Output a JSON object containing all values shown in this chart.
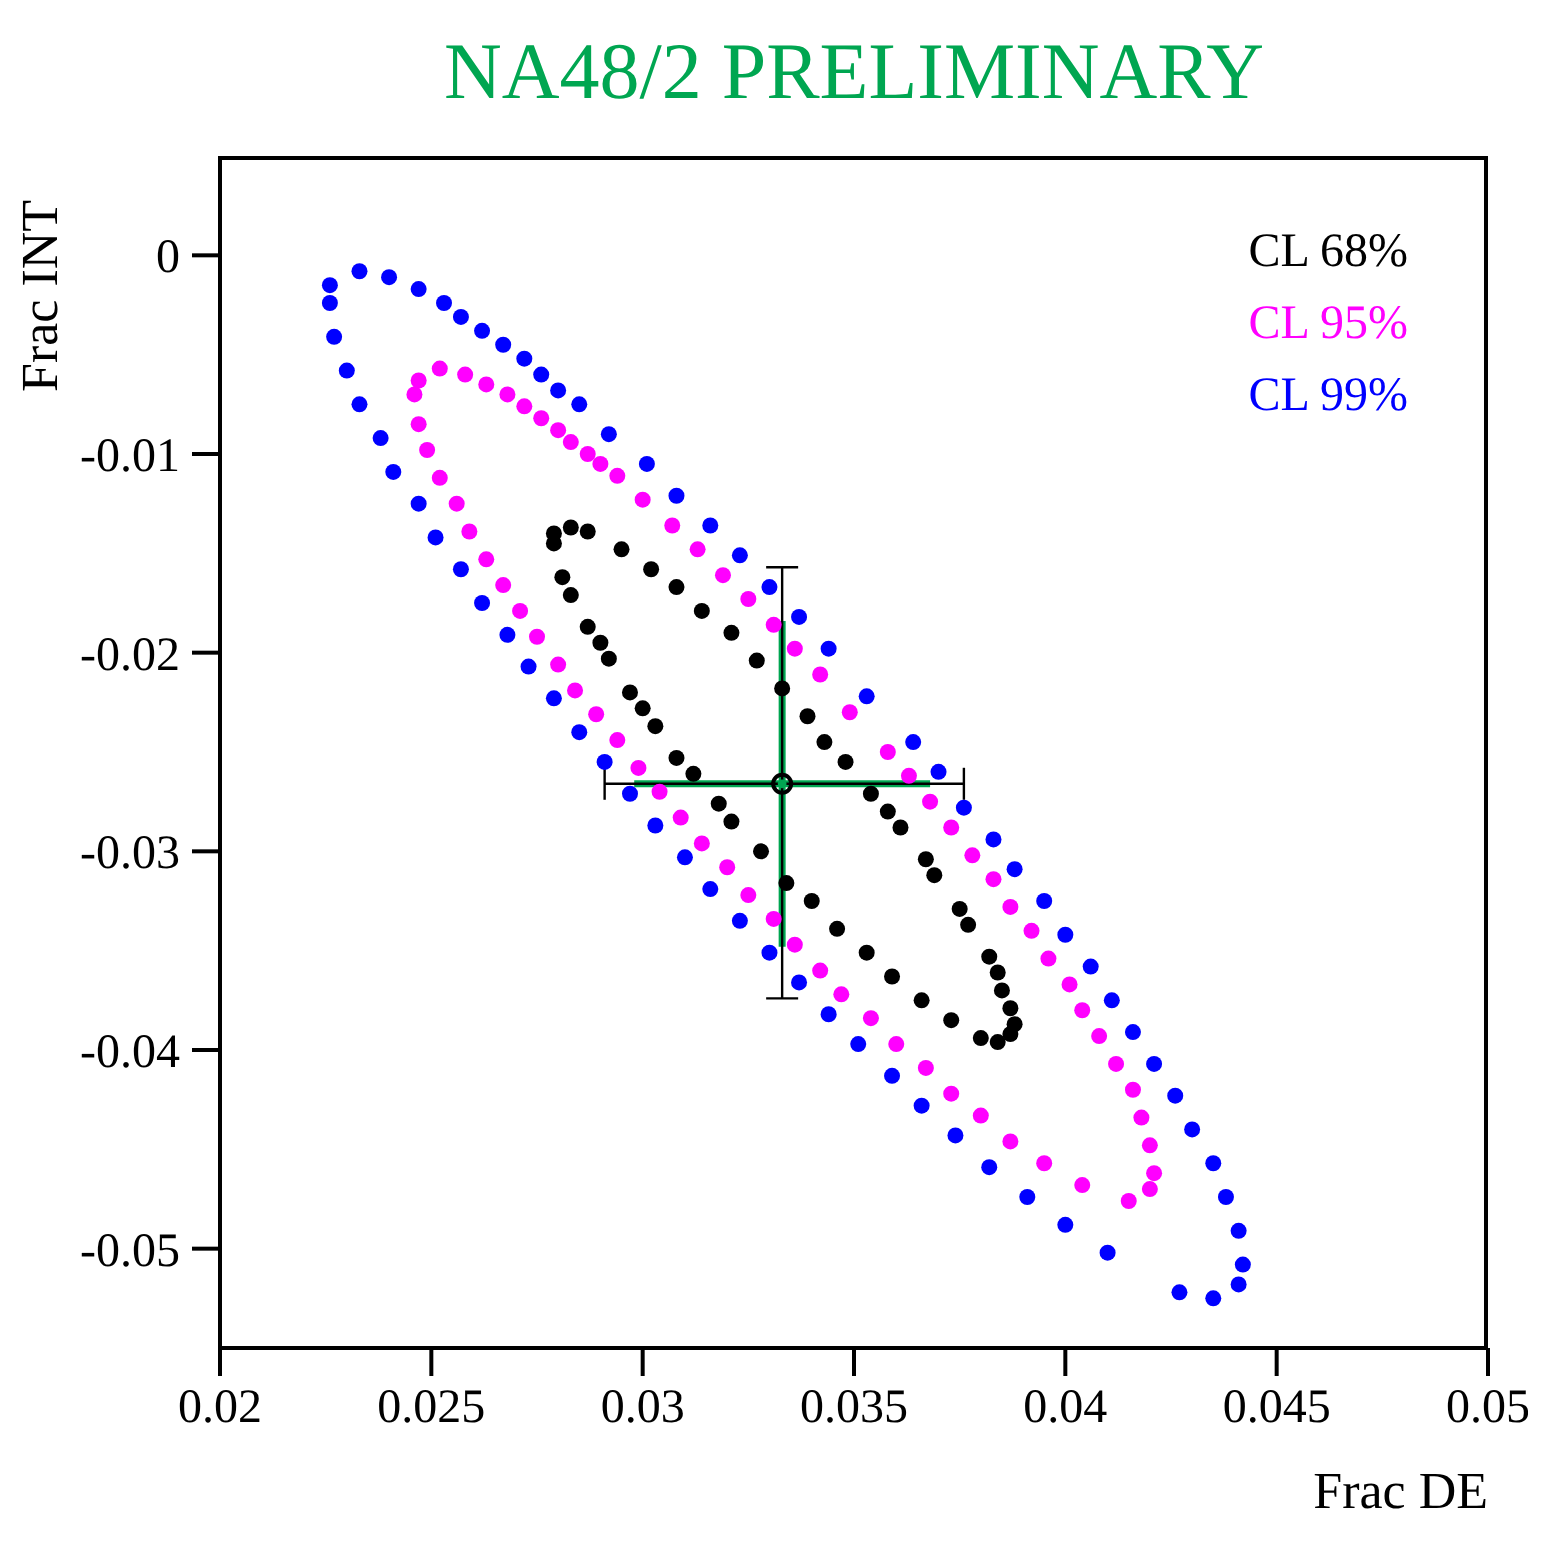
{
  "chart_data": {
    "type": "scatter",
    "title": "NA48/2 PRELIMINARY",
    "xlabel": "Frac DE",
    "ylabel": "Frac INT",
    "xlim": [
      0.02,
      0.05
    ],
    "xticks": [
      0.02,
      0.025,
      0.03,
      0.035,
      0.04,
      0.045,
      0.05
    ],
    "ylim": [
      -0.055,
      0.005
    ],
    "yticks": [
      -0.05,
      -0.04,
      -0.03,
      -0.02,
      -0.01,
      0
    ],
    "grid": false,
    "legend": "top right",
    "marker": "circle",
    "series": [
      {
        "name": "CL 68%",
        "color": "#000000",
        "x": [
          0.0283,
          0.0279,
          0.0279,
          0.0281,
          0.0283,
          0.0287,
          0.029,
          0.0292,
          0.0297,
          0.03,
          0.0303,
          0.0308,
          0.0312,
          0.0318,
          0.0321,
          0.0328,
          0.0334,
          0.034,
          0.0346,
          0.0353,
          0.0359,
          0.0366,
          0.0373,
          0.038,
          0.0384,
          0.0387,
          0.0388,
          0.0387,
          0.0385,
          0.0384,
          0.0382,
          0.0377,
          0.0375,
          0.0369,
          0.0367,
          0.0361,
          0.0358,
          0.0354,
          0.0348,
          0.0343,
          0.0339,
          0.0333,
          0.0327,
          0.0321,
          0.0314,
          0.0308,
          0.0302,
          0.0295,
          0.0287
        ],
        "values": [
          -0.0137,
          -0.014,
          -0.0145,
          -0.0162,
          -0.0171,
          -0.0187,
          -0.0195,
          -0.0203,
          -0.022,
          -0.0228,
          -0.0237,
          -0.0253,
          -0.0261,
          -0.0276,
          -0.0285,
          -0.03,
          -0.0316,
          -0.0325,
          -0.0339,
          -0.0351,
          -0.0363,
          -0.0375,
          -0.0385,
          -0.0394,
          -0.0396,
          -0.0392,
          -0.0387,
          -0.0379,
          -0.037,
          -0.0361,
          -0.0353,
          -0.0337,
          -0.0329,
          -0.0312,
          -0.0304,
          -0.0288,
          -0.028,
          -0.0271,
          -0.0255,
          -0.0245,
          -0.0232,
          -0.0218,
          -0.0204,
          -0.019,
          -0.0179,
          -0.0167,
          -0.0158,
          -0.0148,
          -0.0139
        ]
      },
      {
        "name": "CL 95%",
        "color": "#ff00ff",
        "x": [
          0.0252,
          0.0247,
          0.0246,
          0.0247,
          0.0249,
          0.0252,
          0.0256,
          0.0259,
          0.0263,
          0.0267,
          0.0271,
          0.0275,
          0.028,
          0.0284,
          0.0289,
          0.0294,
          0.0299,
          0.0304,
          0.0309,
          0.0314,
          0.032,
          0.0325,
          0.0331,
          0.0336,
          0.0342,
          0.0347,
          0.0354,
          0.036,
          0.0367,
          0.0373,
          0.038,
          0.0387,
          0.0395,
          0.0404,
          0.0415,
          0.042,
          0.0421,
          0.042,
          0.0418,
          0.0416,
          0.0412,
          0.0408,
          0.0404,
          0.0401,
          0.0396,
          0.0392,
          0.0387,
          0.0383,
          0.0378,
          0.0373,
          0.0368,
          0.0363,
          0.0358,
          0.0349,
          0.0342,
          0.0336,
          0.0331,
          0.0325,
          0.0319,
          0.0313,
          0.0307,
          0.03,
          0.0294,
          0.029,
          0.0287,
          0.0283,
          0.028,
          0.0276,
          0.0272,
          0.0268,
          0.0263,
          0.0258
        ],
        "values": [
          -0.0057,
          -0.0063,
          -0.007,
          -0.0085,
          -0.0098,
          -0.0112,
          -0.0125,
          -0.0139,
          -0.0153,
          -0.0166,
          -0.0179,
          -0.0192,
          -0.0206,
          -0.0219,
          -0.0231,
          -0.0244,
          -0.0258,
          -0.027,
          -0.0283,
          -0.0296,
          -0.0308,
          -0.0322,
          -0.0334,
          -0.0347,
          -0.036,
          -0.0372,
          -0.0384,
          -0.0397,
          -0.0409,
          -0.0422,
          -0.0433,
          -0.0446,
          -0.0457,
          -0.0468,
          -0.0476,
          -0.047,
          -0.0462,
          -0.0448,
          -0.0434,
          -0.042,
          -0.0407,
          -0.0393,
          -0.038,
          -0.0367,
          -0.0354,
          -0.034,
          -0.0328,
          -0.0314,
          -0.0302,
          -0.0288,
          -0.0275,
          -0.0262,
          -0.025,
          -0.023,
          -0.0211,
          -0.0198,
          -0.0186,
          -0.0173,
          -0.0161,
          -0.0148,
          -0.0136,
          -0.0123,
          -0.0111,
          -0.0105,
          -0.01,
          -0.0094,
          -0.0088,
          -0.0082,
          -0.0076,
          -0.007,
          -0.0065,
          -0.006
        ]
      },
      {
        "name": "CL 99%",
        "color": "#0000ff",
        "x": [
          0.0233,
          0.0226,
          0.0226,
          0.0227,
          0.023,
          0.0233,
          0.0238,
          0.0241,
          0.0247,
          0.0251,
          0.0257,
          0.0262,
          0.0268,
          0.0273,
          0.0279,
          0.0285,
          0.0291,
          0.0297,
          0.0303,
          0.031,
          0.0316,
          0.0323,
          0.033,
          0.0337,
          0.0344,
          0.0351,
          0.0359,
          0.0366,
          0.0374,
          0.0382,
          0.0391,
          0.04,
          0.041,
          0.0427,
          0.0435,
          0.0441,
          0.0442,
          0.0441,
          0.0438,
          0.0435,
          0.043,
          0.0426,
          0.0421,
          0.0416,
          0.0411,
          0.0406,
          0.04,
          0.0395,
          0.0388,
          0.0383,
          0.0376,
          0.037,
          0.0364,
          0.0353,
          0.0344,
          0.0337,
          0.033,
          0.0323,
          0.0316,
          0.0308,
          0.0301,
          0.0292,
          0.0285,
          0.028,
          0.0276,
          0.0272,
          0.0267,
          0.0262,
          0.0257,
          0.0253,
          0.0247,
          0.024
        ],
        "values": [
          -0.0008,
          -0.0015,
          -0.0024,
          -0.0041,
          -0.0058,
          -0.0075,
          -0.0092,
          -0.0109,
          -0.0125,
          -0.0142,
          -0.0158,
          -0.0175,
          -0.0191,
          -0.0207,
          -0.0223,
          -0.024,
          -0.0255,
          -0.0271,
          -0.0287,
          -0.0303,
          -0.0319,
          -0.0335,
          -0.0351,
          -0.0366,
          -0.0382,
          -0.0397,
          -0.0413,
          -0.0428,
          -0.0443,
          -0.0459,
          -0.0474,
          -0.0488,
          -0.0502,
          -0.0522,
          -0.0525,
          -0.0518,
          -0.0508,
          -0.0491,
          -0.0474,
          -0.0457,
          -0.044,
          -0.0423,
          -0.0407,
          -0.0391,
          -0.0375,
          -0.0358,
          -0.0342,
          -0.0325,
          -0.0309,
          -0.0294,
          -0.0278,
          -0.026,
          -0.0245,
          -0.0222,
          -0.0198,
          -0.0182,
          -0.0167,
          -0.0151,
          -0.0136,
          -0.0121,
          -0.0105,
          -0.009,
          -0.0075,
          -0.0068,
          -0.006,
          -0.0052,
          -0.0045,
          -0.0038,
          -0.0031,
          -0.0024,
          -0.0017,
          -0.0011
        ]
      },
      {
        "color": "#00a651",
        "x": [
          0.0333
        ],
        "values": [
          -0.0266
        ],
        "errors": [
          [
            -0.0348,
            -0.0184
          ]
        ],
        "xerrors": [
          [
            0.0298,
            0.0368
          ]
        ]
      },
      {
        "color": "#000000",
        "x": [
          0.0333
        ],
        "values": [
          -0.0266
        ],
        "errors": [
          [
            -0.0374,
            -0.0157
          ]
        ],
        "xerrors": [
          [
            0.0291,
            0.0376
          ]
        ]
      }
    ]
  }
}
